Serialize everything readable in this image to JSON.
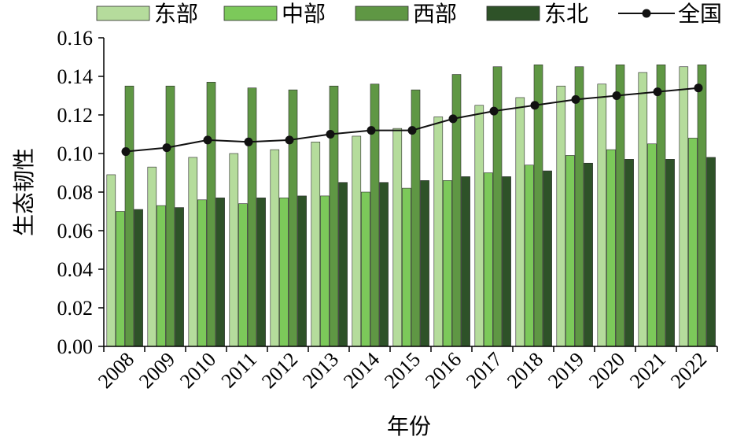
{
  "chart_data": {
    "type": "bar",
    "xlabel": "年份",
    "ylabel": "生态韧性",
    "ylim": [
      0,
      0.16
    ],
    "yticks": [
      "0.00",
      "0.02",
      "0.04",
      "0.06",
      "0.08",
      "0.10",
      "0.12",
      "0.14",
      "0.16"
    ],
    "categories": [
      "2008",
      "2009",
      "2010",
      "2011",
      "2012",
      "2013",
      "2014",
      "2015",
      "2016",
      "2017",
      "2018",
      "2019",
      "2020",
      "2021",
      "2022"
    ],
    "series": [
      {
        "name": "东部",
        "kind": "bar",
        "color": "#b5dc9c",
        "values": [
          0.089,
          0.093,
          0.098,
          0.1,
          0.102,
          0.106,
          0.109,
          0.113,
          0.119,
          0.125,
          0.129,
          0.135,
          0.136,
          0.142,
          0.145
        ]
      },
      {
        "name": "中部",
        "kind": "bar",
        "color": "#7cc95a",
        "values": [
          0.07,
          0.073,
          0.076,
          0.074,
          0.077,
          0.078,
          0.08,
          0.082,
          0.086,
          0.09,
          0.094,
          0.099,
          0.102,
          0.105,
          0.108
        ]
      },
      {
        "name": "西部",
        "kind": "bar",
        "color": "#5f9744",
        "values": [
          0.135,
          0.135,
          0.137,
          0.134,
          0.133,
          0.135,
          0.136,
          0.133,
          0.141,
          0.145,
          0.146,
          0.145,
          0.146,
          0.146,
          0.146
        ]
      },
      {
        "name": "东北",
        "kind": "bar",
        "color": "#2e5228",
        "values": [
          0.071,
          0.072,
          0.077,
          0.077,
          0.078,
          0.085,
          0.085,
          0.086,
          0.088,
          0.088,
          0.091,
          0.095,
          0.097,
          0.097,
          0.098
        ]
      },
      {
        "name": "全国",
        "kind": "line",
        "color": "#111111",
        "values": [
          0.101,
          0.103,
          0.107,
          0.106,
          0.107,
          0.11,
          0.112,
          0.112,
          0.118,
          0.122,
          0.125,
          0.128,
          0.13,
          0.132,
          0.134
        ]
      }
    ],
    "legend_position": "top",
    "grid": false
  }
}
